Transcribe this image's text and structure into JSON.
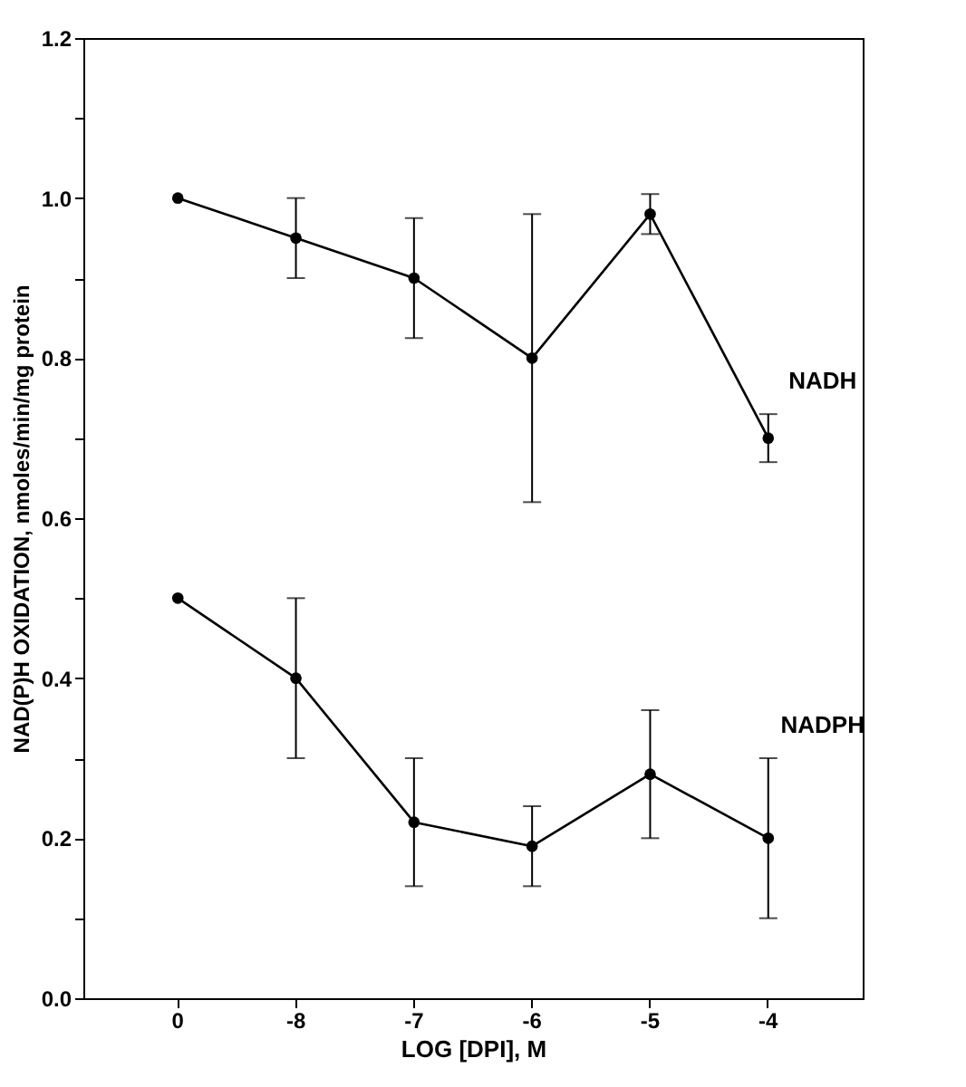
{
  "chart_data": {
    "type": "line",
    "xlabel": "LOG [DPI], M",
    "ylabel": "NAD(P)H OXIDATION, nmoles/min/mg protein",
    "categories": [
      "0",
      "-8",
      "-7",
      "-6",
      "-5",
      "-4"
    ],
    "series": [
      {
        "name": "NADH",
        "color": "#000000",
        "values": [
          1.0,
          0.95,
          0.9,
          0.8,
          0.98,
          0.7
        ],
        "errors": [
          null,
          [
            0.9,
            1.0
          ],
          [
            0.825,
            0.975
          ],
          [
            0.62,
            0.98
          ],
          [
            0.955,
            1.005
          ],
          [
            0.67,
            0.73
          ]
        ]
      },
      {
        "name": "NADPH",
        "color": "#000000",
        "values": [
          0.5,
          0.4,
          0.22,
          0.19,
          0.28,
          0.2
        ],
        "errors": [
          null,
          [
            0.3,
            0.5
          ],
          [
            0.14,
            0.3
          ],
          [
            0.14,
            0.24
          ],
          [
            0.2,
            0.36
          ],
          [
            0.1,
            0.3
          ]
        ]
      }
    ],
    "ylim": [
      0,
      1.2
    ],
    "yticks": [
      {
        "value": 0,
        "label": "0.0"
      },
      {
        "value": 0.1,
        "label": null
      },
      {
        "value": 0.2,
        "label": "0.2"
      },
      {
        "value": 0.3,
        "label": null
      },
      {
        "value": 0.4,
        "label": "0.4"
      },
      {
        "value": 0.5,
        "label": null
      },
      {
        "value": 0.6,
        "label": "0.6"
      },
      {
        "value": 0.7,
        "label": null
      },
      {
        "value": 0.8,
        "label": "0.8"
      },
      {
        "value": 0.9,
        "label": null
      },
      {
        "value": 1.0,
        "label": "1.0"
      },
      {
        "value": 1.1,
        "label": null
      },
      {
        "value": 1.2,
        "label": "1.2"
      }
    ],
    "grid": false,
    "marker": "circle",
    "line_style": "solid"
  }
}
